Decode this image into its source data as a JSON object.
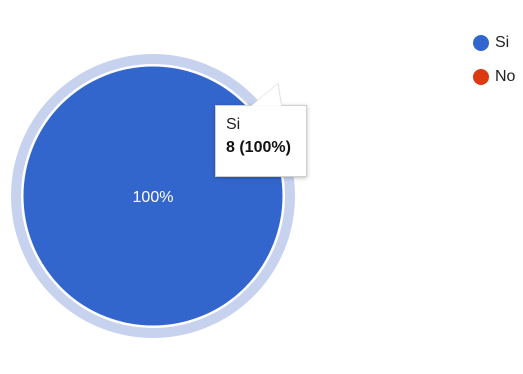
{
  "chart_data": {
    "type": "pie",
    "categories": [
      "Si",
      "No"
    ],
    "values": [
      8,
      0
    ],
    "slice_labels": [
      "100%",
      ""
    ],
    "colors": [
      "#3366cc",
      "#dc3912"
    ],
    "highlight_ring_color": "#c7d3ee",
    "legend_position": "top-right",
    "tooltip": {
      "category": "Si",
      "value_text": "8 (100%)"
    }
  }
}
